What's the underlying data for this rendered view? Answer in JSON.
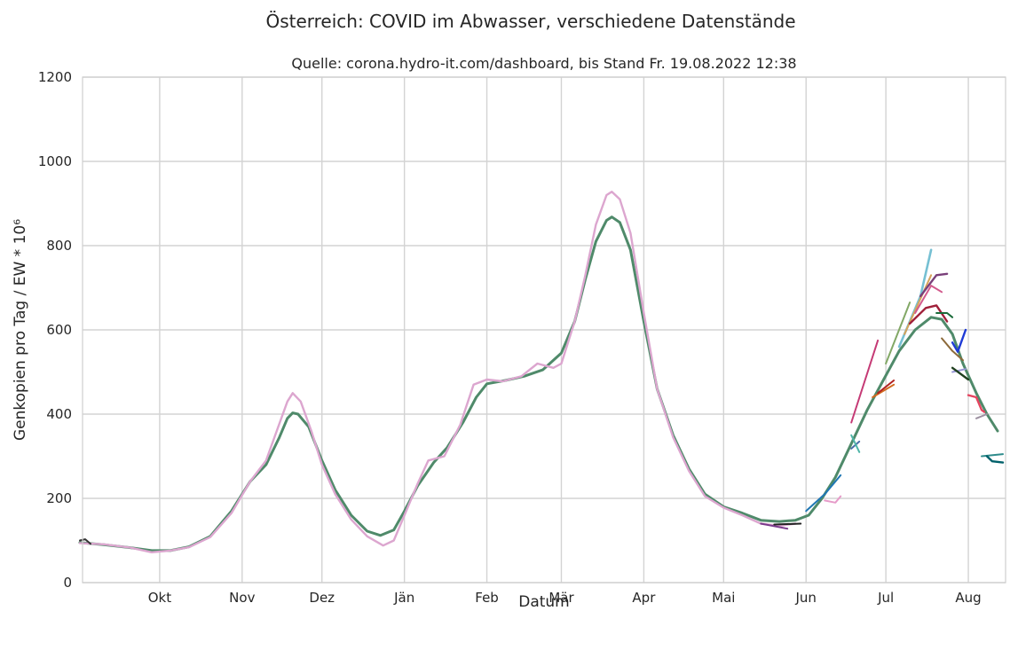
{
  "chart_data": {
    "type": "line",
    "suptitle": "Österreich: COVID im Abwasser, verschiedene Datenstände",
    "title": "Quelle: corona.hydro-it.com/dashboard, bis Stand Fr. 19.08.2022 12:38",
    "xlabel": "Datum",
    "ylabel": "Genkopien pro Tag / EW * 10⁶",
    "xlim": [
      "2021-09-02",
      "2022-08-15"
    ],
    "ylim": [
      0,
      1200
    ],
    "yticks": [
      0,
      200,
      400,
      600,
      800,
      1000,
      1200
    ],
    "xticks": [
      {
        "date": "2021-10-01",
        "label": "Okt"
      },
      {
        "date": "2021-11-01",
        "label": "Nov"
      },
      {
        "date": "2021-12-01",
        "label": "Dez"
      },
      {
        "date": "2022-01-01",
        "label": "Jän"
      },
      {
        "date": "2022-02-01",
        "label": "Feb"
      },
      {
        "date": "2022-03-01",
        "label": "Mär"
      },
      {
        "date": "2022-04-01",
        "label": "Apr"
      },
      {
        "date": "2022-05-01",
        "label": "Mai"
      },
      {
        "date": "2022-06-01",
        "label": "Jun"
      },
      {
        "date": "2022-07-01",
        "label": "Jul"
      },
      {
        "date": "2022-08-01",
        "label": "Aug"
      }
    ],
    "grid": true,
    "legend": "none",
    "series": [
      {
        "color": "#4f8a6a",
        "width": 3,
        "points": [
          [
            "2021-09-01",
            95
          ],
          [
            "2021-09-10",
            90
          ],
          [
            "2021-09-20",
            83
          ],
          [
            "2021-09-28",
            76
          ],
          [
            "2021-10-05",
            76
          ],
          [
            "2021-10-12",
            85
          ],
          [
            "2021-10-20",
            110
          ],
          [
            "2021-10-28",
            170
          ],
          [
            "2021-11-04",
            240
          ],
          [
            "2021-11-10",
            280
          ],
          [
            "2021-11-15",
            345
          ],
          [
            "2021-11-18",
            390
          ],
          [
            "2021-11-20",
            403
          ],
          [
            "2021-11-22",
            400
          ],
          [
            "2021-11-26",
            370
          ],
          [
            "2021-12-01",
            290
          ],
          [
            "2021-12-06",
            220
          ],
          [
            "2021-12-12",
            160
          ],
          [
            "2021-12-18",
            122
          ],
          [
            "2021-12-23",
            112
          ],
          [
            "2021-12-28",
            125
          ],
          [
            "2022-01-01",
            170
          ],
          [
            "2022-01-06",
            230
          ],
          [
            "2022-01-12",
            285
          ],
          [
            "2022-01-17",
            320
          ],
          [
            "2022-01-23",
            380
          ],
          [
            "2022-01-28",
            440
          ],
          [
            "2022-02-01",
            472
          ],
          [
            "2022-02-08",
            480
          ],
          [
            "2022-02-15",
            490
          ],
          [
            "2022-02-22",
            505
          ],
          [
            "2022-03-01",
            545
          ],
          [
            "2022-03-06",
            620
          ],
          [
            "2022-03-10",
            720
          ],
          [
            "2022-03-14",
            810
          ],
          [
            "2022-03-18",
            860
          ],
          [
            "2022-03-20",
            868
          ],
          [
            "2022-03-23",
            855
          ],
          [
            "2022-03-27",
            790
          ],
          [
            "2022-04-01",
            620
          ],
          [
            "2022-04-06",
            460
          ],
          [
            "2022-04-12",
            350
          ],
          [
            "2022-04-18",
            270
          ],
          [
            "2022-04-24",
            210
          ],
          [
            "2022-05-01",
            180
          ],
          [
            "2022-05-08",
            165
          ],
          [
            "2022-05-15",
            148
          ],
          [
            "2022-05-22",
            145
          ],
          [
            "2022-05-28",
            148
          ],
          [
            "2022-06-02",
            160
          ],
          [
            "2022-06-07",
            200
          ],
          [
            "2022-06-12",
            250
          ],
          [
            "2022-06-18",
            330
          ],
          [
            "2022-06-24",
            410
          ],
          [
            "2022-06-30",
            480
          ],
          [
            "2022-07-06",
            550
          ],
          [
            "2022-07-12",
            600
          ],
          [
            "2022-07-18",
            630
          ],
          [
            "2022-07-22",
            625
          ],
          [
            "2022-07-26",
            590
          ],
          [
            "2022-07-30",
            520
          ],
          [
            "2022-08-04",
            450
          ],
          [
            "2022-08-08",
            400
          ],
          [
            "2022-08-12",
            360
          ]
        ]
      },
      {
        "color": "#dca6cf",
        "width": 2.4,
        "points": [
          [
            "2021-09-01",
            94
          ],
          [
            "2021-09-10",
            91
          ],
          [
            "2021-09-20",
            83
          ],
          [
            "2021-09-28",
            72
          ],
          [
            "2021-10-05",
            76
          ],
          [
            "2021-10-12",
            84
          ],
          [
            "2021-10-20",
            108
          ],
          [
            "2021-10-28",
            165
          ],
          [
            "2021-11-04",
            240
          ],
          [
            "2021-11-10",
            290
          ],
          [
            "2021-11-14",
            360
          ],
          [
            "2021-11-18",
            430
          ],
          [
            "2021-11-20",
            450
          ],
          [
            "2021-11-23",
            430
          ],
          [
            "2021-11-27",
            360
          ],
          [
            "2021-12-01",
            280
          ],
          [
            "2021-12-06",
            210
          ],
          [
            "2021-12-12",
            150
          ],
          [
            "2021-12-18",
            110
          ],
          [
            "2021-12-24",
            88
          ],
          [
            "2021-12-28",
            100
          ],
          [
            "2022-01-01",
            160
          ],
          [
            "2022-01-06",
            235
          ],
          [
            "2022-01-10",
            290
          ],
          [
            "2022-01-16",
            300
          ],
          [
            "2022-01-22",
            375
          ],
          [
            "2022-01-27",
            470
          ],
          [
            "2022-02-01",
            482
          ],
          [
            "2022-02-07",
            478
          ],
          [
            "2022-02-14",
            490
          ],
          [
            "2022-02-20",
            520
          ],
          [
            "2022-02-26",
            510
          ],
          [
            "2022-03-01",
            520
          ],
          [
            "2022-03-06",
            620
          ],
          [
            "2022-03-10",
            730
          ],
          [
            "2022-03-14",
            850
          ],
          [
            "2022-03-18",
            920
          ],
          [
            "2022-03-20",
            928
          ],
          [
            "2022-03-23",
            910
          ],
          [
            "2022-03-27",
            830
          ],
          [
            "2022-04-01",
            640
          ],
          [
            "2022-04-06",
            460
          ],
          [
            "2022-04-12",
            345
          ],
          [
            "2022-04-18",
            265
          ],
          [
            "2022-04-24",
            205
          ],
          [
            "2022-05-01",
            178
          ],
          [
            "2022-05-08",
            160
          ],
          [
            "2022-05-15",
            140
          ],
          [
            "2022-05-22",
            135
          ],
          [
            "2022-05-28",
            140
          ]
        ]
      },
      {
        "color": "#333333",
        "width": 2,
        "points": [
          [
            "2021-09-01",
            100
          ],
          [
            "2021-09-03",
            103
          ],
          [
            "2021-09-05",
            92
          ]
        ]
      },
      {
        "color": "#222222",
        "width": 2,
        "points": [
          [
            "2022-05-20",
            138
          ],
          [
            "2022-05-30",
            140
          ]
        ]
      },
      {
        "color": "#7a3a8c",
        "width": 2,
        "points": [
          [
            "2022-05-15",
            140
          ],
          [
            "2022-05-25",
            128
          ]
        ]
      },
      {
        "color": "#1f77b4",
        "width": 2,
        "points": [
          [
            "2022-06-01",
            170
          ],
          [
            "2022-06-08",
            210
          ],
          [
            "2022-06-14",
            255
          ]
        ]
      },
      {
        "color": "#e69bc9",
        "width": 2,
        "points": [
          [
            "2022-06-08",
            195
          ],
          [
            "2022-06-12",
            190
          ],
          [
            "2022-06-14",
            205
          ]
        ]
      },
      {
        "color": "#4b6ea8",
        "width": 2,
        "points": [
          [
            "2022-06-18",
            318
          ],
          [
            "2022-06-21",
            335
          ]
        ]
      },
      {
        "color": "#4fb5a8",
        "width": 2,
        "points": [
          [
            "2022-06-18",
            350
          ],
          [
            "2022-06-21",
            310
          ]
        ]
      },
      {
        "color": "#c53a75",
        "width": 2,
        "points": [
          [
            "2022-06-18",
            380
          ],
          [
            "2022-06-28",
            575
          ]
        ]
      },
      {
        "color": "#d2691e",
        "width": 2,
        "points": [
          [
            "2022-06-26",
            440
          ],
          [
            "2022-07-04",
            470
          ]
        ]
      },
      {
        "color": "#b22222",
        "width": 2,
        "points": [
          [
            "2022-06-28",
            450
          ],
          [
            "2022-07-04",
            480
          ]
        ]
      },
      {
        "color": "#82a866",
        "width": 2,
        "points": [
          [
            "2022-07-01",
            520
          ],
          [
            "2022-07-10",
            665
          ]
        ]
      },
      {
        "color": "#76c0d3",
        "width": 2.6,
        "points": [
          [
            "2022-07-06",
            560
          ],
          [
            "2022-07-14",
            680
          ],
          [
            "2022-07-18",
            790
          ]
        ]
      },
      {
        "color": "#d6a35a",
        "width": 2,
        "points": [
          [
            "2022-07-08",
            590
          ],
          [
            "2022-07-18",
            730
          ]
        ]
      },
      {
        "color": "#7a3f7a",
        "width": 2.4,
        "points": [
          [
            "2022-07-14",
            680
          ],
          [
            "2022-07-20",
            730
          ],
          [
            "2022-07-24",
            733
          ]
        ]
      },
      {
        "color": "#a0203a",
        "width": 2.4,
        "points": [
          [
            "2022-07-10",
            615
          ],
          [
            "2022-07-16",
            652
          ],
          [
            "2022-07-20",
            658
          ],
          [
            "2022-07-24",
            620
          ]
        ]
      },
      {
        "color": "#d25a8c",
        "width": 2,
        "points": [
          [
            "2022-07-12",
            640
          ],
          [
            "2022-07-18",
            705
          ],
          [
            "2022-07-22",
            690
          ]
        ]
      },
      {
        "color": "#1a6b3a",
        "width": 2,
        "points": [
          [
            "2022-07-20",
            640
          ],
          [
            "2022-07-24",
            640
          ],
          [
            "2022-07-26",
            630
          ]
        ]
      },
      {
        "color": "#8c6a3a",
        "width": 2,
        "points": [
          [
            "2022-07-22",
            580
          ],
          [
            "2022-07-26",
            550
          ],
          [
            "2022-07-30",
            528
          ]
        ]
      },
      {
        "color": "#1f3bd6",
        "width": 2.4,
        "points": [
          [
            "2022-07-26",
            570
          ],
          [
            "2022-07-28",
            548
          ],
          [
            "2022-07-31",
            600
          ]
        ]
      },
      {
        "color": "#9896d6",
        "width": 2,
        "points": [
          [
            "2022-07-26",
            500
          ],
          [
            "2022-07-31",
            507
          ]
        ]
      },
      {
        "color": "#1f3f1f",
        "width": 2.4,
        "points": [
          [
            "2022-07-26",
            510
          ],
          [
            "2022-08-01",
            482
          ]
        ]
      },
      {
        "color": "#e54560",
        "width": 2.4,
        "points": [
          [
            "2022-08-01",
            445
          ],
          [
            "2022-08-04",
            440
          ],
          [
            "2022-08-06",
            410
          ],
          [
            "2022-08-07",
            405
          ]
        ]
      },
      {
        "color": "#9c90a0",
        "width": 2,
        "points": [
          [
            "2022-08-04",
            390
          ],
          [
            "2022-08-08",
            400
          ]
        ]
      },
      {
        "color": "#2e8b8b",
        "width": 2,
        "points": [
          [
            "2022-08-06",
            300
          ],
          [
            "2022-08-14",
            305
          ]
        ]
      },
      {
        "color": "#00606a",
        "width": 2.4,
        "points": [
          [
            "2022-08-08",
            300
          ],
          [
            "2022-08-10",
            288
          ],
          [
            "2022-08-14",
            285
          ]
        ]
      }
    ]
  }
}
